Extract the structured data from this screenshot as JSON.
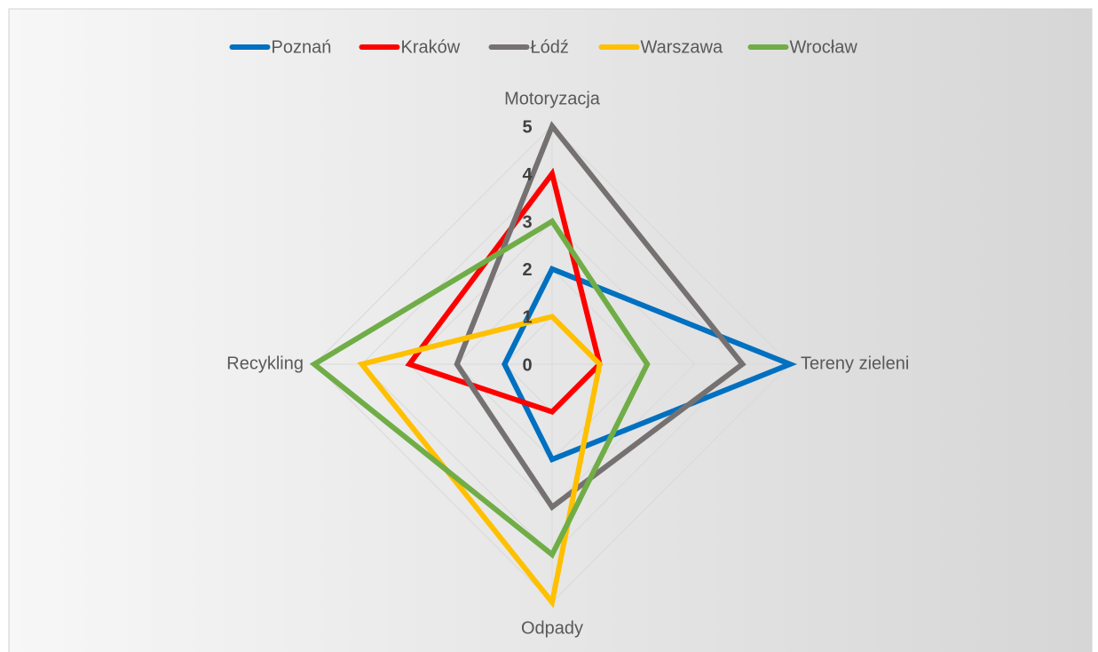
{
  "chart_data": {
    "type": "radar",
    "categories": [
      "Motoryzacja",
      "Tereny zieleni",
      "Odpady",
      "Recykling"
    ],
    "series": [
      {
        "name": "Poznań",
        "color": "#0070c0",
        "values": [
          2,
          5,
          2,
          1
        ]
      },
      {
        "name": "Kraków",
        "color": "#ff0000",
        "values": [
          4,
          1,
          1,
          3
        ]
      },
      {
        "name": "Łódź",
        "color": "#767171",
        "values": [
          5,
          4,
          3,
          2
        ]
      },
      {
        "name": "Warszawa",
        "color": "#ffc000",
        "values": [
          1,
          1,
          5,
          4
        ]
      },
      {
        "name": "Wrocław",
        "color": "#70ad47",
        "values": [
          3,
          2,
          4,
          5
        ]
      }
    ],
    "ylim": [
      0,
      5
    ],
    "yticks": [
      0,
      1,
      2,
      3,
      4,
      5
    ],
    "grid": true,
    "legend": "top"
  }
}
